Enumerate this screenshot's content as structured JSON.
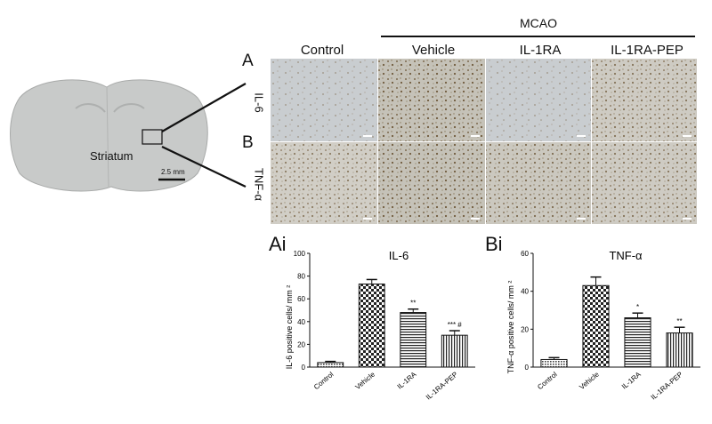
{
  "figure": {
    "mcao_label": "MCAO",
    "columns": [
      "Control",
      "Vehicle",
      "IL-1RA",
      "IL-1RA-PEP"
    ],
    "panel_labels": {
      "A": "A",
      "B": "B",
      "Ai": "Ai",
      "Bi": "Bi"
    },
    "row_labels": {
      "il6": "IL-6",
      "tnf": "TNF-α"
    },
    "brain": {
      "region_label": "Striatum",
      "scale_bar": "2.5 mm"
    }
  },
  "chart_data": [
    {
      "type": "bar",
      "title": "IL-6",
      "ylabel": "IL-6 positive cells/ mm ²",
      "ylim": [
        0,
        100
      ],
      "yticks": [
        "0",
        "20",
        "40",
        "60",
        "80",
        "100"
      ],
      "categories": [
        "Control",
        "Vehicle",
        "IL-1RA",
        "IL-1RA-PEP"
      ],
      "values": [
        4,
        73,
        48,
        28
      ],
      "errors": [
        1,
        4,
        3,
        4
      ],
      "annotations": [
        "",
        "",
        "**",
        "*** #"
      ]
    },
    {
      "type": "bar",
      "title": "TNF-α",
      "ylabel": "TNF-α positive cells/ mm ²",
      "ylim": [
        0,
        60
      ],
      "yticks": [
        "0",
        "20",
        "40",
        "60"
      ],
      "categories": [
        "Control",
        "Vehicle",
        "IL-1RA",
        "IL-1RA-PEP"
      ],
      "values": [
        4,
        43,
        26,
        18
      ],
      "errors": [
        1,
        4.5,
        2.5,
        3
      ],
      "annotations": [
        "",
        "",
        "*",
        "**"
      ]
    }
  ]
}
